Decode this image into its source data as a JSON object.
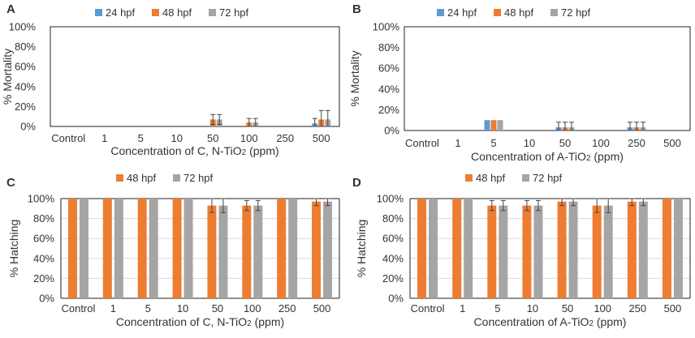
{
  "figure": {
    "colors": {
      "24 hpf": "#5B9BD5",
      "48 hpf": "#ED7D31",
      "72 hpf": "#A5A5A5"
    }
  },
  "chart_data": [
    {
      "panel_label": "A",
      "type": "bar",
      "categories": [
        "Control",
        "1",
        "5",
        "10",
        "50",
        "100",
        "250",
        "500"
      ],
      "series": [
        {
          "name": "24 hpf",
          "values": [
            0,
            0,
            0,
            0,
            0,
            0,
            0,
            3
          ],
          "errors": [
            0,
            0,
            0,
            0,
            0,
            0,
            0,
            5
          ]
        },
        {
          "name": "48 hpf",
          "values": [
            0,
            0,
            0,
            0,
            7,
            4,
            0,
            7
          ],
          "errors": [
            0,
            0,
            0,
            0,
            5,
            4,
            0,
            9
          ]
        },
        {
          "name": "72 hpf",
          "values": [
            0,
            0,
            0,
            0,
            7,
            4,
            0,
            7
          ],
          "errors": [
            0,
            0,
            0,
            0,
            5,
            4,
            0,
            9
          ]
        }
      ],
      "ylim": [
        0,
        100
      ],
      "yticks": [
        "0%",
        "20%",
        "40%",
        "60%",
        "80%",
        "100%"
      ],
      "ylabel": "% Mortality",
      "xlabel": "Concentration of C, N-TiO2 (ppm)",
      "legend": "top",
      "bordered": true
    },
    {
      "panel_label": "B",
      "type": "bar",
      "categories": [
        "Control",
        "1",
        "5",
        "10",
        "50",
        "100",
        "250",
        "500"
      ],
      "series": [
        {
          "name": "24 hpf",
          "values": [
            0,
            0,
            10,
            0,
            3,
            0,
            3,
            0
          ],
          "errors": [
            0,
            0,
            0,
            0,
            5,
            0,
            5,
            0
          ]
        },
        {
          "name": "48 hpf",
          "values": [
            0,
            0,
            10,
            0,
            3,
            0,
            3,
            0
          ],
          "errors": [
            0,
            0,
            0,
            0,
            5,
            0,
            5,
            0
          ]
        },
        {
          "name": "72 hpf",
          "values": [
            0,
            0,
            10,
            0,
            3,
            0,
            3,
            0
          ],
          "errors": [
            0,
            0,
            0,
            0,
            5,
            0,
            5,
            0
          ]
        }
      ],
      "ylim": [
        0,
        100
      ],
      "yticks": [
        "0%",
        "20%",
        "40%",
        "60%",
        "80%",
        "100%"
      ],
      "ylabel": "% Mortality",
      "xlabel": "Concentration of A-TiO2 (ppm)",
      "legend": "top",
      "bordered": true
    },
    {
      "panel_label": "C",
      "type": "bar",
      "categories": [
        "Control",
        "1",
        "5",
        "10",
        "50",
        "100",
        "250",
        "500"
      ],
      "series": [
        {
          "name": "48 hpf",
          "values": [
            100,
            100,
            100,
            100,
            93,
            93,
            100,
            97
          ],
          "errors": [
            0,
            0,
            0,
            0,
            7,
            5,
            0,
            4
          ]
        },
        {
          "name": "72 hpf",
          "values": [
            100,
            100,
            100,
            100,
            93,
            93,
            100,
            97
          ],
          "errors": [
            0,
            0,
            0,
            0,
            7,
            5,
            0,
            4
          ]
        }
      ],
      "ylim": [
        0,
        100
      ],
      "yticks": [
        "0%",
        "20%",
        "40%",
        "60%",
        "80%",
        "100%"
      ],
      "ylabel": "% Hatching",
      "xlabel": "Concentration of C, N-TiO2 (ppm)",
      "legend": "top",
      "bordered": false
    },
    {
      "panel_label": "D",
      "type": "bar",
      "categories": [
        "Control",
        "1",
        "5",
        "10",
        "50",
        "100",
        "250",
        "500"
      ],
      "series": [
        {
          "name": "48 hpf",
          "values": [
            100,
            100,
            93,
            93,
            97,
            93,
            97,
            100
          ],
          "errors": [
            0,
            0,
            5,
            5,
            4,
            7,
            4,
            0
          ]
        },
        {
          "name": "72 hpf",
          "values": [
            100,
            100,
            93,
            93,
            97,
            93,
            97,
            100
          ],
          "errors": [
            0,
            0,
            5,
            5,
            4,
            7,
            4,
            0
          ]
        }
      ],
      "ylim": [
        0,
        100
      ],
      "yticks": [
        "0%",
        "20%",
        "40%",
        "60%",
        "80%",
        "100%"
      ],
      "ylabel": "% Hatching",
      "xlabel": "Concentration of A-TiO2 (ppm)",
      "legend": "top",
      "bordered": false
    }
  ]
}
